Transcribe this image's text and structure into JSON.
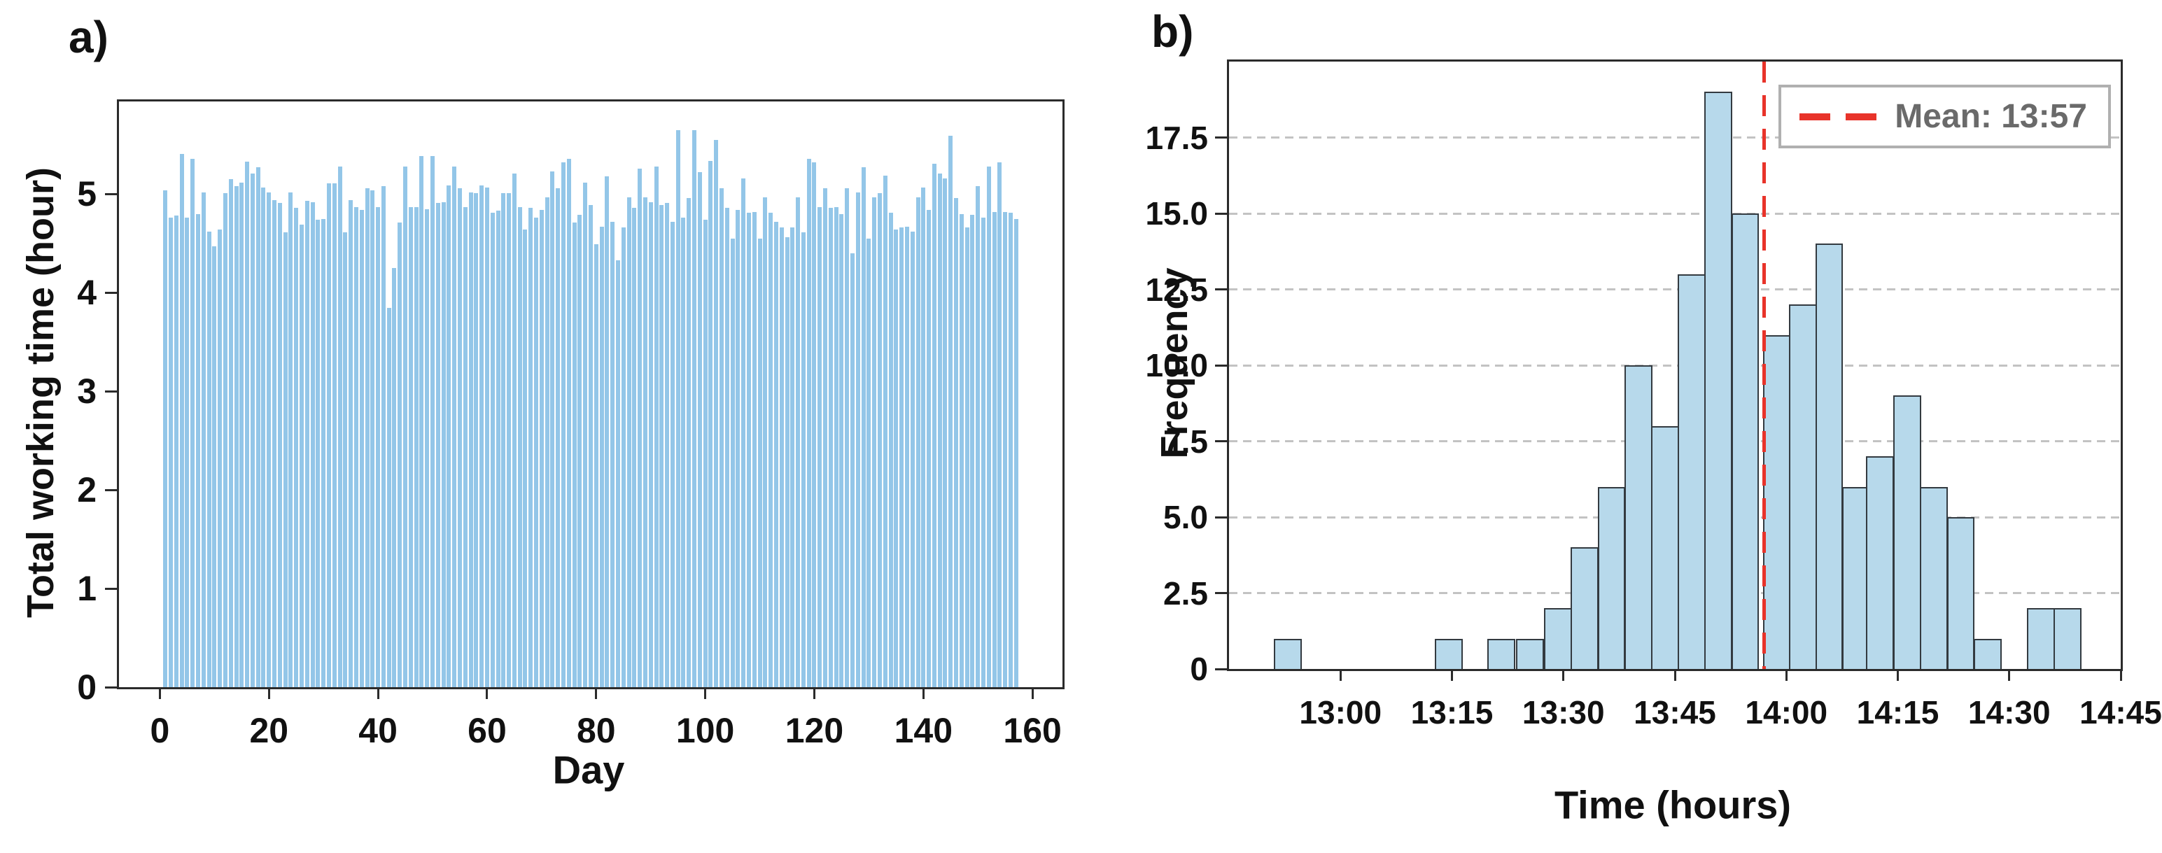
{
  "panel_a": {
    "label": "a)",
    "ylabel": "Total working time (hour)",
    "xlabel": "Day",
    "bar_color": "#93c6e8",
    "axis_color": "#2b2b2b"
  },
  "panel_b": {
    "label": "b)",
    "ylabel": "Frequency",
    "xlabel": "Time (hours)",
    "bar_fill": "#b7d9eb",
    "bar_edge": "#333a40",
    "grid_color": "#c3c3c3",
    "mean_line_color": "#e8332a",
    "legend": {
      "label": "Mean: 13:57",
      "text_color": "#6a6a6a",
      "border_color": "#b0b0b0",
      "dash_color": "#e8332a"
    }
  },
  "chart_data": [
    {
      "type": "bar",
      "title": "",
      "xlabel": "Day",
      "ylabel": "Total working time (hour)",
      "x_start_day": 1,
      "values": [
        5.04,
        4.76,
        4.78,
        5.41,
        4.76,
        5.36,
        4.8,
        5.02,
        4.62,
        4.47,
        4.64,
        5.01,
        5.15,
        5.08,
        5.12,
        5.33,
        5.21,
        5.27,
        5.07,
        5.02,
        4.94,
        4.91,
        4.61,
        5.02,
        4.86,
        4.69,
        4.93,
        4.92,
        4.74,
        4.75,
        5.11,
        5.11,
        5.28,
        4.61,
        4.94,
        4.87,
        4.84,
        5.06,
        5.04,
        4.87,
        5.08,
        3.85,
        4.25,
        4.71,
        5.28,
        4.87,
        4.87,
        5.39,
        4.85,
        5.39,
        4.91,
        4.92,
        5.09,
        5.28,
        5.06,
        4.87,
        5.02,
        5.01,
        5.09,
        5.07,
        4.81,
        4.83,
        5.01,
        5.01,
        5.21,
        4.87,
        4.64,
        4.86,
        4.76,
        4.84,
        4.97,
        5.23,
        5.06,
        5.32,
        5.36,
        4.71,
        4.79,
        5.12,
        4.89,
        4.49,
        4.67,
        5.18,
        4.72,
        4.33,
        4.66,
        4.97,
        4.86,
        5.26,
        4.97,
        4.92,
        5.28,
        4.89,
        4.91,
        4.72,
        5.65,
        4.76,
        4.96,
        5.65,
        5.22,
        4.74,
        5.34,
        5.55,
        5.06,
        4.86,
        4.55,
        4.84,
        5.16,
        4.81,
        4.82,
        4.55,
        4.97,
        4.81,
        4.72,
        4.66,
        4.56,
        4.66,
        4.97,
        4.61,
        5.36,
        5.32,
        4.87,
        5.06,
        4.86,
        4.87,
        4.8,
        5.06,
        4.4,
        5.02,
        5.27,
        4.55,
        4.97,
        5.01,
        5.19,
        4.81,
        4.64,
        4.66,
        4.67,
        4.62,
        4.97,
        5.07,
        4.84,
        5.31,
        5.21,
        5.16,
        5.59,
        4.96,
        4.8,
        4.66,
        4.79,
        5.08,
        4.76,
        5.28,
        4.82,
        5.32,
        4.82,
        4.81,
        4.75
      ],
      "yticks": [
        0,
        1,
        2,
        3,
        4,
        5
      ],
      "ytick_labels": [
        "0",
        "1",
        "2",
        "3",
        "4",
        "5"
      ],
      "xticks": [
        0,
        20,
        40,
        60,
        80,
        100,
        120,
        140,
        160
      ],
      "xtick_labels": [
        "0",
        "20",
        "40",
        "60",
        "80",
        "100",
        "120",
        "140",
        "160"
      ],
      "ylim": [
        0,
        5.94
      ],
      "xlim_days": [
        -7.5,
        165.5
      ],
      "grid": false
    },
    {
      "type": "histogram",
      "title": "",
      "xlabel": "Time (hours)",
      "ylabel": "Frequency",
      "axis_time_origin": "12:45",
      "xlim_minutes_after_origin": [
        0,
        120
      ],
      "bin_width_minutes": 3.75,
      "bins": [
        {
          "start_min": 6.0,
          "count": 1
        },
        {
          "start_min": 27.7,
          "count": 1
        },
        {
          "start_min": 34.8,
          "count": 1
        },
        {
          "start_min": 38.6,
          "count": 1
        },
        {
          "start_min": 42.4,
          "count": 2
        },
        {
          "start_min": 46.0,
          "count": 4
        },
        {
          "start_min": 49.6,
          "count": 6
        },
        {
          "start_min": 53.2,
          "count": 10
        },
        {
          "start_min": 56.8,
          "count": 8
        },
        {
          "start_min": 60.4,
          "count": 13
        },
        {
          "start_min": 64.0,
          "count": 19
        },
        {
          "start_min": 67.6,
          "count": 15
        },
        {
          "start_min": 71.9,
          "count": 11
        },
        {
          "start_min": 75.4,
          "count": 12
        },
        {
          "start_min": 78.9,
          "count": 14
        },
        {
          "start_min": 82.5,
          "count": 6
        },
        {
          "start_min": 85.7,
          "count": 7
        },
        {
          "start_min": 89.4,
          "count": 9
        },
        {
          "start_min": 93.0,
          "count": 6
        },
        {
          "start_min": 96.6,
          "count": 5
        },
        {
          "start_min": 100.2,
          "count": 1
        },
        {
          "start_min": 107.4,
          "count": 2
        },
        {
          "start_min": 111.0,
          "count": 2
        }
      ],
      "yticks": [
        0,
        2.5,
        5,
        7.5,
        10,
        12.5,
        15,
        17.5
      ],
      "ytick_labels": [
        "0",
        "2.5",
        "5.0",
        "7.5",
        "10.0",
        "12.5",
        "15.0",
        "17.5"
      ],
      "xtick_minutes": [
        15,
        30,
        45,
        60,
        75,
        90,
        105
      ],
      "xtick_labels": [
        "13:00",
        "13:15",
        "13:30",
        "13:45",
        "14:00",
        "14:15",
        "14:30",
        "14:45"
      ],
      "xtick_minutes_all": [
        15,
        30,
        45,
        60,
        75,
        90,
        105,
        120
      ],
      "ylim": [
        0,
        20
      ],
      "grid": "y-dashed",
      "mean": {
        "label": "Mean: 13:57",
        "minutes_after_origin": 72,
        "time": "13:57"
      },
      "legend_position": "upper-right"
    }
  ]
}
